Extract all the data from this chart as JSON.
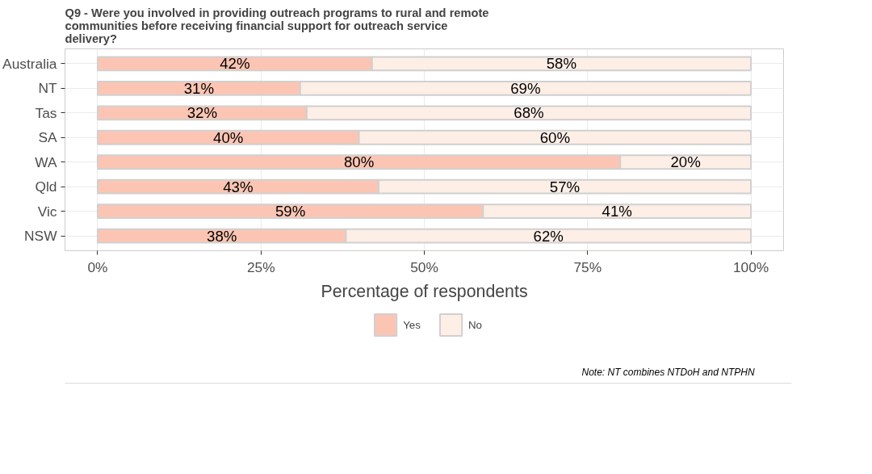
{
  "chart_data": {
    "type": "bar",
    "orientation": "horizontal",
    "stacked": true,
    "title": "Q9 - Were you involved in providing outreach programs to rural and remote communities before receiving financial support for outreach service delivery?",
    "xlabel": "Percentage of respondents",
    "categories": [
      "Australia",
      "NT",
      "Tas",
      "SA",
      "WA",
      "Qld",
      "Vic",
      "NSW"
    ],
    "series": [
      {
        "name": "Yes",
        "color": "#fcc5b3",
        "values": [
          42,
          31,
          32,
          40,
          80,
          43,
          59,
          38
        ],
        "value_labels": [
          "42%",
          "31%",
          "32%",
          "40%",
          "80%",
          "43%",
          "59%",
          "38%"
        ]
      },
      {
        "name": "No",
        "color": "#fdeee6",
        "values": [
          58,
          69,
          68,
          60,
          20,
          57,
          41,
          62
        ],
        "value_labels": [
          "58%",
          "69%",
          "68%",
          "60%",
          "20%",
          "57%",
          "41%",
          "62%"
        ]
      }
    ],
    "xlim": [
      -5,
      105
    ],
    "xticks": [
      {
        "value": 0,
        "label": "0%"
      },
      {
        "value": 25,
        "label": "25%"
      },
      {
        "value": 50,
        "label": "50%"
      },
      {
        "value": 75,
        "label": "75%"
      },
      {
        "value": 100,
        "label": "100%"
      }
    ],
    "grid": true,
    "legend": "bottom",
    "annotations": [
      "Note: NT combines NTDoH and NTPHN"
    ]
  }
}
